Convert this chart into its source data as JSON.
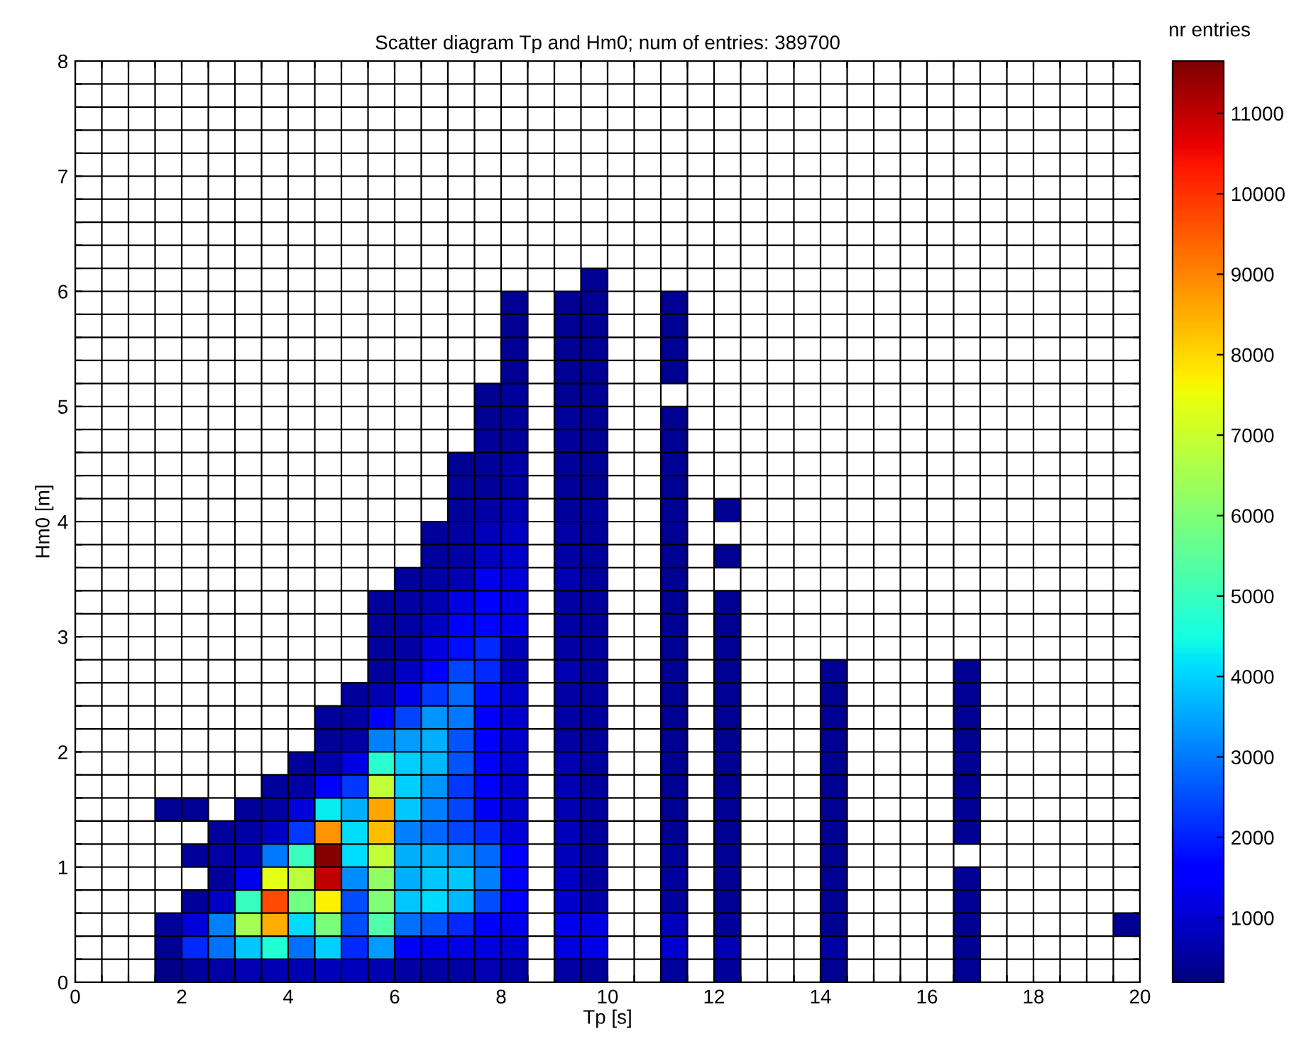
{
  "chart_data": {
    "type": "heatmap",
    "title": "Scatter diagram Tp and Hm0; num of entries: 389700",
    "xlabel": "Tp [s]",
    "ylabel": "Hm0 [m]",
    "clabel": "nr entries",
    "x": [
      0.25,
      0.75,
      1.25,
      1.75,
      2.25,
      2.75,
      3.25,
      3.75,
      4.25,
      4.75,
      5.25,
      5.75,
      6.25,
      6.75,
      7.25,
      7.75,
      8.25,
      8.75,
      9.25,
      9.75,
      10.25,
      10.75,
      11.25,
      11.75,
      12.25,
      12.75,
      13.25,
      13.75,
      14.25,
      14.75,
      15.25,
      15.75,
      16.25,
      16.75,
      17.25,
      17.75,
      18.25,
      18.75,
      19.25,
      19.75
    ],
    "y": [
      6.1,
      5.9,
      5.7,
      5.5,
      5.3,
      5.1,
      4.9,
      4.7,
      4.5,
      4.3,
      4.1,
      3.9,
      3.7,
      3.5,
      3.3,
      3.1,
      2.9,
      2.7,
      2.5,
      2.3,
      2.1,
      1.9,
      1.7,
      1.5,
      1.3,
      1.1,
      0.9,
      0.7,
      0.5,
      0.3,
      0.1
    ],
    "xlim": [
      0,
      20
    ],
    "xticks": [
      0,
      {
        "value": 0.5,
        "label": null
      },
      {
        "value": 1,
        "label": null
      },
      {
        "value": 1.5,
        "label": null
      },
      2,
      {
        "value": 2.5,
        "label": null
      },
      {
        "value": 3,
        "label": null
      },
      {
        "value": 3.5,
        "label": null
      },
      4,
      {
        "value": 4.5,
        "label": null
      },
      {
        "value": 5,
        "label": null
      },
      {
        "value": 5.5,
        "label": null
      },
      6,
      {
        "value": 6.5,
        "label": null
      },
      {
        "value": 7,
        "label": null
      },
      {
        "value": 7.5,
        "label": null
      },
      8,
      {
        "value": 8.5,
        "label": null
      },
      {
        "value": 9,
        "label": null
      },
      {
        "value": 9.5,
        "label": null
      },
      10,
      {
        "value": 10.5,
        "label": null
      },
      {
        "value": 11,
        "label": null
      },
      {
        "value": 11.5,
        "label": null
      },
      12,
      {
        "value": 12.5,
        "label": null
      },
      {
        "value": 13,
        "label": null
      },
      {
        "value": 13.5,
        "label": null
      },
      14,
      {
        "value": 14.5,
        "label": null
      },
      {
        "value": 15,
        "label": null
      },
      {
        "value": 15.5,
        "label": null
      },
      16,
      {
        "value": 16.5,
        "label": null
      },
      {
        "value": 17,
        "label": null
      },
      {
        "value": 17.5,
        "label": null
      },
      18,
      {
        "value": 18.5,
        "label": null
      },
      {
        "value": 19,
        "label": null
      },
      {
        "value": 19.5,
        "label": null
      },
      20
    ],
    "ylim": [
      0,
      8
    ],
    "yticks": [
      0,
      {
        "value": 0.2,
        "label": null
      },
      {
        "value": 0.4,
        "label": null
      },
      {
        "value": 0.6,
        "label": null
      },
      {
        "value": 0.8,
        "label": null
      },
      1,
      {
        "value": 1.2,
        "label": null
      },
      {
        "value": 1.4,
        "label": null
      },
      {
        "value": 1.6,
        "label": null
      },
      {
        "value": 1.8,
        "label": null
      },
      2,
      {
        "value": 2.2,
        "label": null
      },
      {
        "value": 2.4,
        "label": null
      },
      {
        "value": 2.6,
        "label": null
      },
      {
        "value": 2.8,
        "label": null
      },
      3,
      {
        "value": 3.2,
        "label": null
      },
      {
        "value": 3.4,
        "label": null
      },
      {
        "value": 3.6,
        "label": null
      },
      {
        "value": 3.8,
        "label": null
      },
      4,
      {
        "value": 4.2,
        "label": null
      },
      {
        "value": 4.4,
        "label": null
      },
      {
        "value": 4.6,
        "label": null
      },
      {
        "value": 4.8,
        "label": null
      },
      5,
      {
        "value": 5.2,
        "label": null
      },
      {
        "value": 5.4,
        "label": null
      },
      {
        "value": 5.6,
        "label": null
      },
      {
        "value": 5.8,
        "label": null
      },
      6,
      {
        "value": 6.2,
        "label": null
      },
      {
        "value": 6.4,
        "label": null
      },
      {
        "value": 6.6,
        "label": null
      },
      {
        "value": 6.8,
        "label": null
      },
      7,
      {
        "value": 7.2,
        "label": null
      },
      {
        "value": 7.4,
        "label": null
      },
      {
        "value": 7.6,
        "label": null
      },
      {
        "value": 7.8,
        "label": null
      },
      8
    ],
    "clim": [
      200,
      11650
    ],
    "cticks": [
      1000,
      2000,
      3000,
      4000,
      5000,
      6000,
      7000,
      8000,
      9000,
      10000,
      11000
    ],
    "grid": true,
    "cells": [
      [
        null,
        null,
        null,
        null,
        null,
        null,
        null,
        null,
        null,
        null,
        null,
        null,
        null,
        null,
        null,
        null,
        null,
        null,
        null,
        400,
        null,
        null,
        null,
        null,
        null,
        null,
        null,
        null,
        null,
        null,
        null,
        null,
        null,
        null,
        null,
        null,
        null,
        null,
        null,
        null
      ],
      [
        null,
        null,
        null,
        null,
        null,
        null,
        null,
        null,
        null,
        null,
        null,
        null,
        null,
        null,
        null,
        null,
        400,
        null,
        400,
        400,
        null,
        null,
        400,
        null,
        null,
        null,
        null,
        null,
        null,
        null,
        null,
        null,
        null,
        null,
        null,
        null,
        null,
        null,
        null,
        null
      ],
      [
        null,
        null,
        null,
        null,
        null,
        null,
        null,
        null,
        null,
        null,
        null,
        null,
        null,
        null,
        null,
        null,
        400,
        null,
        400,
        400,
        null,
        null,
        400,
        null,
        null,
        null,
        null,
        null,
        null,
        null,
        null,
        null,
        null,
        null,
        null,
        null,
        null,
        null,
        null,
        null
      ],
      [
        null,
        null,
        null,
        null,
        null,
        null,
        null,
        null,
        null,
        null,
        null,
        null,
        null,
        null,
        null,
        null,
        400,
        null,
        400,
        400,
        null,
        null,
        400,
        null,
        null,
        null,
        null,
        null,
        null,
        null,
        null,
        null,
        null,
        null,
        null,
        null,
        null,
        null,
        null,
        null
      ],
      [
        null,
        null,
        null,
        null,
        null,
        null,
        null,
        null,
        null,
        null,
        null,
        null,
        null,
        null,
        null,
        null,
        400,
        null,
        400,
        400,
        null,
        null,
        400,
        null,
        null,
        null,
        null,
        null,
        null,
        null,
        null,
        null,
        null,
        null,
        null,
        null,
        null,
        null,
        null,
        null
      ],
      [
        null,
        null,
        null,
        null,
        null,
        null,
        null,
        null,
        null,
        null,
        null,
        null,
        null,
        null,
        null,
        400,
        500,
        null,
        400,
        400,
        null,
        null,
        null,
        null,
        null,
        null,
        null,
        null,
        null,
        null,
        null,
        null,
        null,
        null,
        null,
        null,
        null,
        null,
        null,
        null
      ],
      [
        null,
        null,
        null,
        null,
        null,
        null,
        null,
        null,
        null,
        null,
        null,
        null,
        null,
        null,
        null,
        400,
        500,
        null,
        500,
        400,
        null,
        null,
        400,
        null,
        null,
        null,
        null,
        null,
        null,
        null,
        null,
        null,
        null,
        null,
        null,
        null,
        null,
        null,
        null,
        null
      ],
      [
        null,
        null,
        null,
        null,
        null,
        null,
        null,
        null,
        null,
        null,
        null,
        null,
        null,
        null,
        null,
        500,
        500,
        null,
        500,
        400,
        null,
        null,
        400,
        null,
        null,
        null,
        null,
        null,
        null,
        null,
        null,
        null,
        null,
        null,
        null,
        null,
        null,
        null,
        null,
        null
      ],
      [
        null,
        null,
        null,
        null,
        null,
        null,
        null,
        null,
        null,
        null,
        null,
        null,
        null,
        null,
        400,
        500,
        600,
        null,
        500,
        400,
        null,
        null,
        400,
        null,
        null,
        null,
        null,
        null,
        null,
        null,
        null,
        null,
        null,
        null,
        null,
        null,
        null,
        null,
        null,
        null
      ],
      [
        null,
        null,
        null,
        null,
        null,
        null,
        null,
        null,
        null,
        null,
        null,
        null,
        null,
        null,
        500,
        500,
        600,
        null,
        500,
        400,
        null,
        null,
        400,
        null,
        null,
        null,
        null,
        null,
        null,
        null,
        null,
        null,
        null,
        null,
        null,
        null,
        null,
        null,
        null,
        null
      ],
      [
        null,
        null,
        null,
        null,
        null,
        null,
        null,
        null,
        null,
        null,
        null,
        null,
        null,
        null,
        500,
        600,
        700,
        null,
        500,
        500,
        null,
        null,
        400,
        null,
        400,
        null,
        null,
        null,
        null,
        null,
        null,
        null,
        null,
        null,
        null,
        null,
        null,
        null,
        null,
        null
      ],
      [
        null,
        null,
        null,
        null,
        null,
        null,
        null,
        null,
        null,
        null,
        null,
        null,
        null,
        500,
        600,
        800,
        900,
        null,
        600,
        500,
        null,
        null,
        400,
        null,
        null,
        null,
        null,
        null,
        null,
        null,
        null,
        null,
        null,
        null,
        null,
        null,
        null,
        null,
        null,
        null
      ],
      [
        null,
        null,
        null,
        null,
        null,
        null,
        null,
        null,
        null,
        null,
        null,
        null,
        null,
        500,
        600,
        900,
        1000,
        null,
        600,
        500,
        null,
        null,
        400,
        null,
        400,
        null,
        null,
        null,
        null,
        null,
        null,
        null,
        null,
        null,
        null,
        null,
        null,
        null,
        null,
        null
      ],
      [
        null,
        null,
        null,
        null,
        null,
        null,
        null,
        null,
        null,
        null,
        null,
        null,
        500,
        600,
        700,
        1300,
        1100,
        null,
        700,
        500,
        null,
        null,
        400,
        null,
        null,
        null,
        null,
        null,
        null,
        null,
        null,
        null,
        null,
        null,
        null,
        null,
        null,
        null,
        null,
        null
      ],
      [
        null,
        null,
        null,
        null,
        null,
        null,
        null,
        null,
        null,
        null,
        null,
        500,
        600,
        700,
        1200,
        1600,
        1200,
        null,
        600,
        500,
        null,
        null,
        400,
        null,
        400,
        null,
        null,
        null,
        null,
        null,
        null,
        null,
        null,
        null,
        null,
        null,
        null,
        null,
        null,
        null
      ],
      [
        null,
        null,
        null,
        null,
        null,
        null,
        null,
        null,
        null,
        null,
        null,
        500,
        600,
        900,
        1500,
        1700,
        1300,
        null,
        600,
        500,
        null,
        null,
        400,
        null,
        400,
        null,
        null,
        null,
        null,
        null,
        null,
        null,
        null,
        null,
        null,
        null,
        null,
        null,
        null,
        null
      ],
      [
        null,
        null,
        null,
        null,
        null,
        null,
        null,
        null,
        null,
        null,
        null,
        500,
        600,
        1200,
        1800,
        2100,
        800,
        null,
        600,
        500,
        null,
        null,
        400,
        null,
        400,
        null,
        null,
        null,
        null,
        null,
        null,
        null,
        null,
        null,
        null,
        null,
        null,
        null,
        null,
        null
      ],
      [
        null,
        null,
        null,
        null,
        null,
        null,
        null,
        null,
        null,
        null,
        null,
        500,
        900,
        1600,
        2400,
        2100,
        800,
        null,
        700,
        500,
        null,
        null,
        400,
        null,
        400,
        null,
        null,
        null,
        400,
        null,
        null,
        null,
        null,
        400,
        null,
        null,
        null,
        null,
        null,
        null
      ],
      [
        null,
        null,
        null,
        null,
        null,
        null,
        null,
        null,
        null,
        null,
        500,
        700,
        1300,
        2300,
        2800,
        1800,
        1000,
        null,
        600,
        500,
        null,
        null,
        400,
        null,
        400,
        null,
        null,
        null,
        400,
        null,
        null,
        null,
        null,
        400,
        null,
        null,
        null,
        null,
        null,
        null
      ],
      [
        null,
        null,
        null,
        null,
        null,
        null,
        null,
        null,
        null,
        500,
        600,
        1600,
        2400,
        3300,
        3000,
        1600,
        1000,
        null,
        600,
        500,
        null,
        null,
        400,
        null,
        400,
        null,
        null,
        null,
        400,
        null,
        null,
        null,
        null,
        400,
        null,
        null,
        null,
        null,
        null,
        null
      ],
      [
        null,
        null,
        null,
        null,
        null,
        null,
        null,
        null,
        null,
        500,
        600,
        3100,
        3400,
        3600,
        2600,
        1600,
        1000,
        null,
        600,
        500,
        null,
        null,
        400,
        null,
        400,
        null,
        null,
        null,
        400,
        null,
        null,
        null,
        null,
        400,
        null,
        null,
        null,
        null,
        null,
        null
      ],
      [
        null,
        null,
        null,
        null,
        null,
        null,
        null,
        null,
        500,
        600,
        1200,
        4800,
        4000,
        3700,
        2600,
        1600,
        1000,
        null,
        700,
        500,
        null,
        null,
        400,
        null,
        400,
        null,
        null,
        null,
        400,
        null,
        null,
        null,
        null,
        400,
        null,
        null,
        null,
        null,
        null,
        null
      ],
      [
        null,
        null,
        null,
        null,
        null,
        null,
        null,
        500,
        600,
        1600,
        2300,
        6900,
        4000,
        3300,
        2300,
        1600,
        1000,
        null,
        700,
        500,
        null,
        null,
        400,
        null,
        400,
        null,
        null,
        null,
        400,
        null,
        null,
        null,
        null,
        400,
        null,
        null,
        null,
        null,
        null,
        null
      ],
      [
        null,
        null,
        null,
        400,
        400,
        null,
        500,
        600,
        1100,
        4300,
        3600,
        8600,
        3900,
        3100,
        2400,
        1400,
        1000,
        null,
        700,
        500,
        null,
        null,
        400,
        null,
        400,
        null,
        null,
        null,
        400,
        null,
        null,
        null,
        null,
        400,
        null,
        null,
        null,
        null,
        null,
        null
      ],
      [
        null,
        null,
        null,
        null,
        null,
        500,
        600,
        900,
        2300,
        8800,
        4100,
        8300,
        3100,
        2800,
        2400,
        2100,
        1100,
        null,
        800,
        500,
        null,
        null,
        400,
        null,
        400,
        null,
        null,
        null,
        400,
        null,
        null,
        null,
        null,
        400,
        null,
        null,
        null,
        null,
        null,
        null
      ],
      [
        null,
        null,
        null,
        null,
        500,
        600,
        700,
        3000,
        5000,
        11600,
        4100,
        6900,
        3600,
        3600,
        3300,
        2800,
        1600,
        null,
        800,
        500,
        null,
        null,
        500,
        null,
        400,
        null,
        null,
        null,
        400,
        null,
        null,
        null,
        null,
        null,
        null,
        null,
        null,
        null,
        null,
        null
      ],
      [
        null,
        null,
        null,
        null,
        null,
        500,
        1300,
        7400,
        6800,
        11000,
        3200,
        6200,
        3600,
        3900,
        3900,
        3100,
        1600,
        null,
        900,
        500,
        null,
        null,
        500,
        null,
        400,
        null,
        null,
        null,
        400,
        null,
        null,
        null,
        null,
        400,
        null,
        null,
        null,
        null,
        null,
        null
      ],
      [
        null,
        null,
        null,
        null,
        500,
        900,
        5000,
        9700,
        5800,
        7700,
        2500,
        6000,
        3900,
        4100,
        3700,
        2500,
        1600,
        null,
        1000,
        600,
        null,
        null,
        500,
        null,
        400,
        null,
        null,
        null,
        400,
        null,
        null,
        null,
        null,
        400,
        null,
        null,
        null,
        null,
        null,
        null
      ],
      [
        null,
        null,
        null,
        500,
        1100,
        3100,
        6500,
        8500,
        4100,
        5900,
        2500,
        5300,
        2900,
        2600,
        2100,
        1600,
        1300,
        null,
        1300,
        1200,
        null,
        null,
        800,
        null,
        500,
        null,
        null,
        null,
        400,
        null,
        null,
        null,
        null,
        400,
        null,
        null,
        null,
        null,
        null,
        400
      ],
      [
        null,
        null,
        null,
        400,
        2100,
        2900,
        3900,
        4700,
        2900,
        4000,
        2100,
        3400,
        1600,
        1300,
        1200,
        1100,
        1000,
        null,
        1100,
        1200,
        null,
        null,
        1000,
        null,
        700,
        null,
        null,
        null,
        600,
        null,
        null,
        null,
        null,
        400,
        null,
        null,
        null,
        null,
        null,
        null
      ],
      [
        null,
        null,
        null,
        300,
        500,
        600,
        700,
        700,
        700,
        800,
        800,
        700,
        600,
        600,
        600,
        700,
        600,
        null,
        600,
        500,
        null,
        null,
        500,
        null,
        500,
        null,
        null,
        null,
        400,
        null,
        null,
        null,
        null,
        400,
        null,
        null,
        null,
        null,
        null,
        null
      ]
    ]
  }
}
